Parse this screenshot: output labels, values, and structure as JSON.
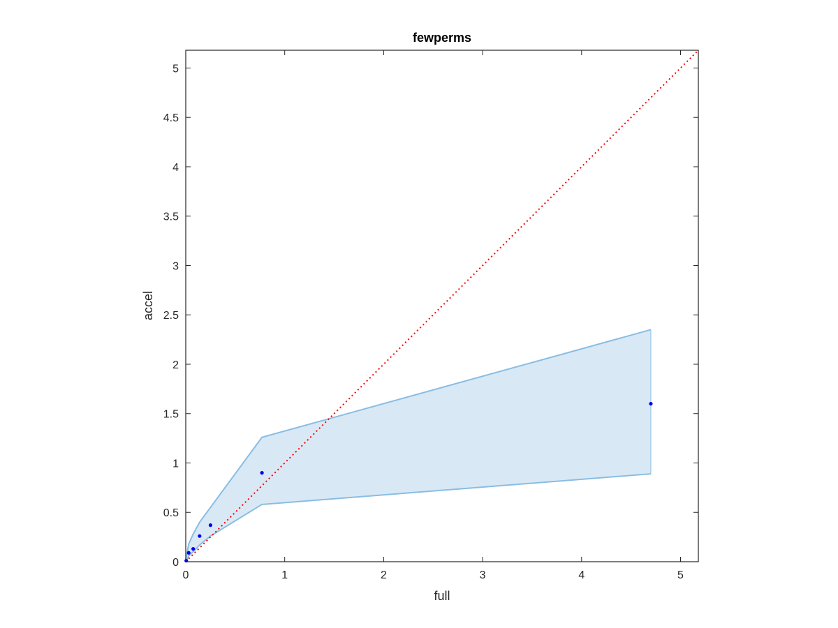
{
  "chart_data": {
    "type": "scatter",
    "title": "fewperms",
    "xlabel": "full",
    "ylabel": "accel",
    "xlim": [
      0,
      5.18
    ],
    "ylim": [
      0,
      5.18
    ],
    "xticks": [
      "0",
      "1",
      "2",
      "3",
      "4",
      "5"
    ],
    "yticks": [
      "0",
      "0.5",
      "1",
      "1.5",
      "2",
      "2.5",
      "3",
      "3.5",
      "4",
      "4.5",
      "5"
    ],
    "grid": false,
    "points": {
      "x": [
        0.005,
        0.03,
        0.075,
        0.14,
        0.25,
        0.77,
        4.7
      ],
      "y": [
        0.01,
        0.09,
        0.13,
        0.26,
        0.37,
        0.9,
        1.6
      ]
    },
    "band": {
      "x": [
        0,
        0.03,
        0.075,
        0.14,
        0.25,
        0.77,
        4.7
      ],
      "upper": [
        0.02,
        0.18,
        0.28,
        0.4,
        0.55,
        1.26,
        2.35
      ],
      "lower": [
        0,
        0.06,
        0.1,
        0.17,
        0.26,
        0.58,
        0.89
      ]
    },
    "reference_line": {
      "x": [
        0,
        5.18
      ],
      "y": [
        0,
        5.18
      ],
      "style": "dotted"
    },
    "colors": {
      "points": "#0000ee",
      "band_fill": "#d9e8f5",
      "band_edge": "#88bde3",
      "reference": "#ff0000",
      "axes": "#262626"
    }
  }
}
